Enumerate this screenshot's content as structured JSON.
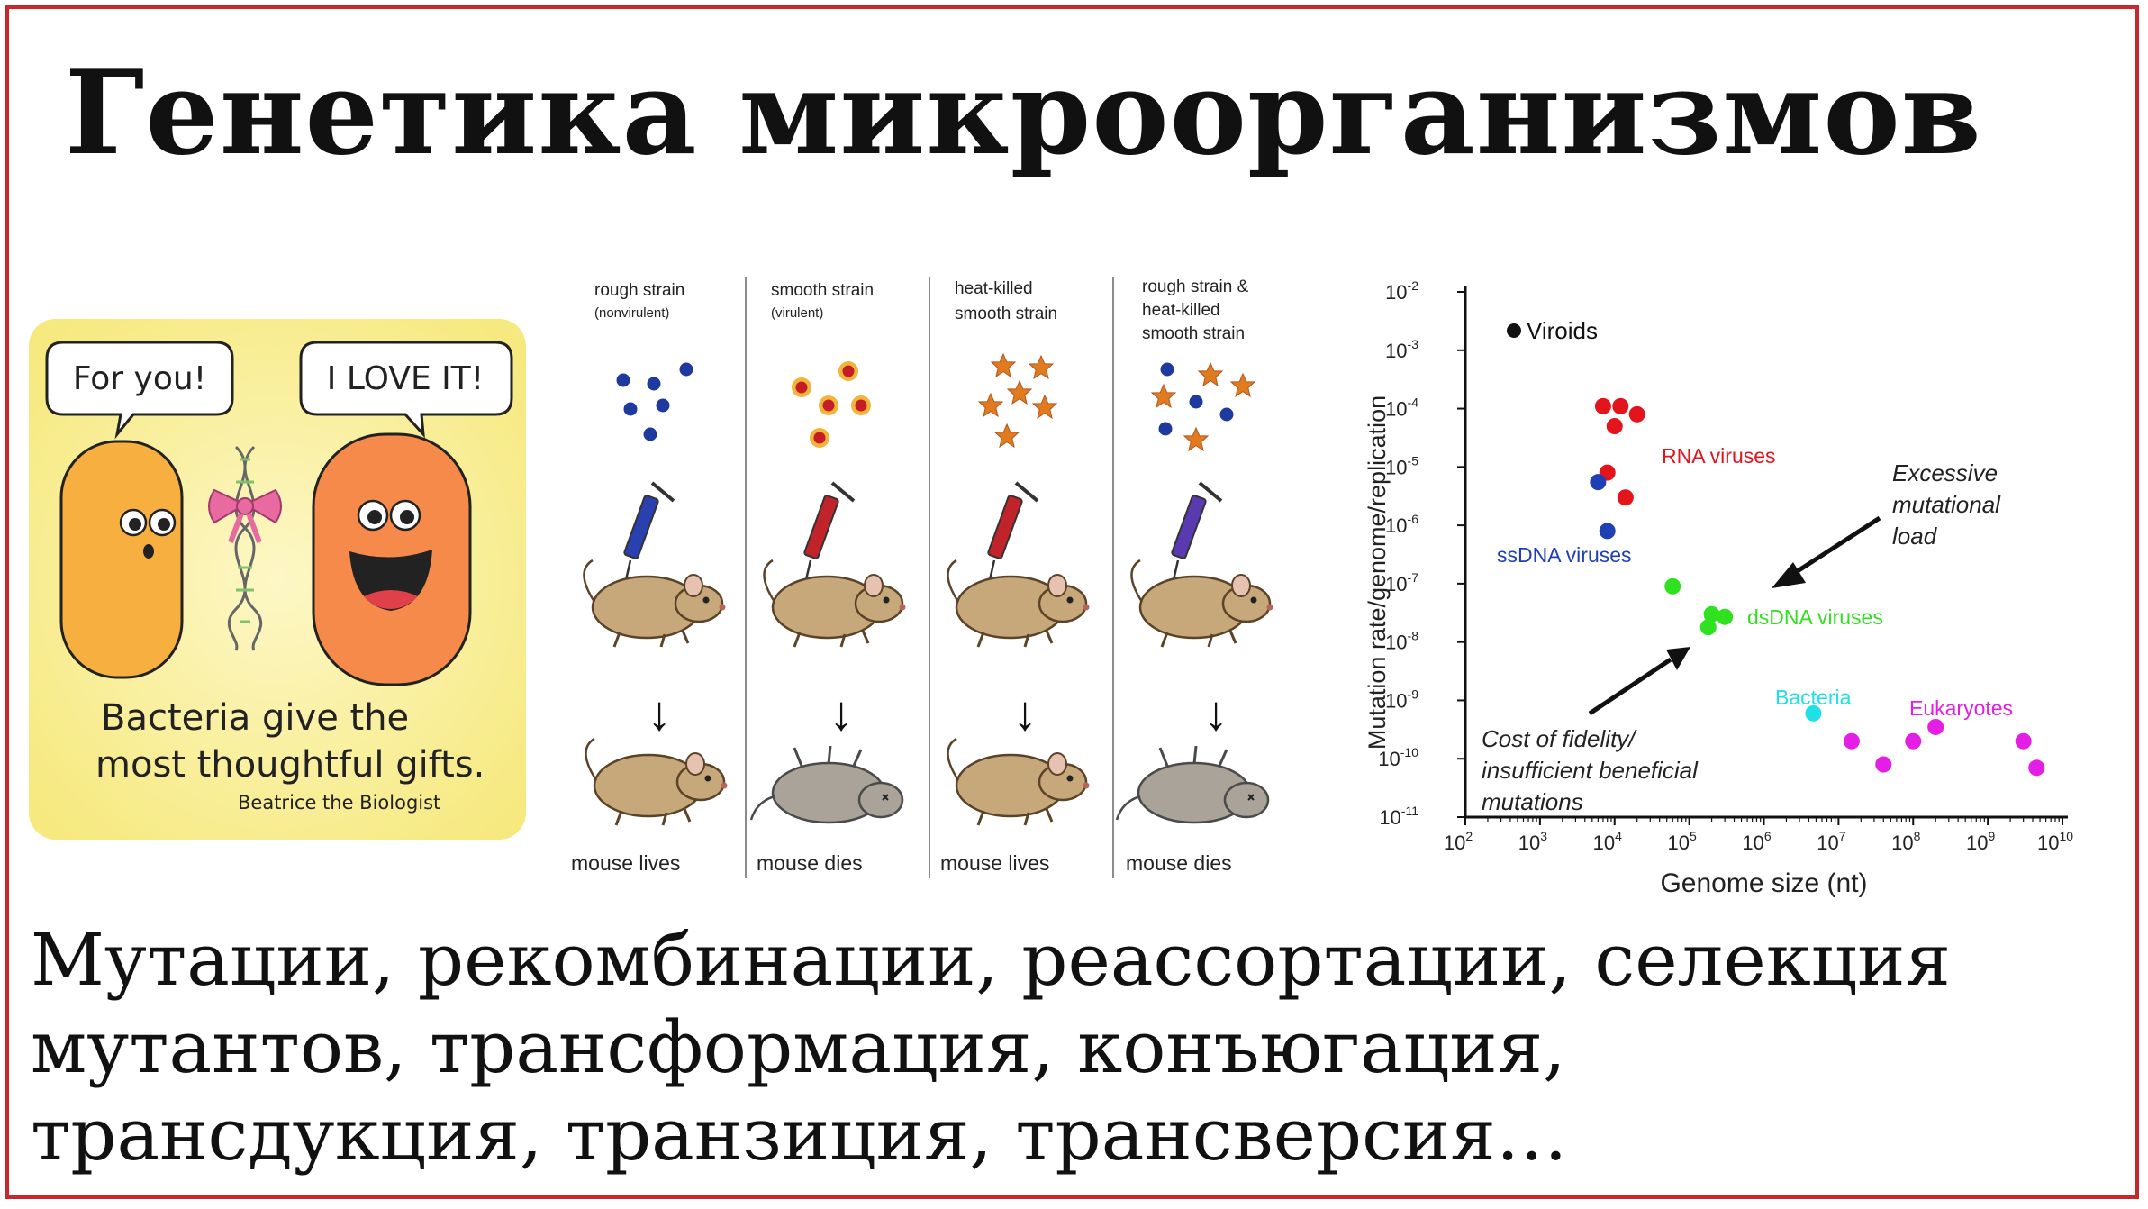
{
  "slide": {
    "title": "Генетика микроорганизмов",
    "bottom_lines": [
      "Мутации, рекомбинации, реассортации, селекция",
      "мутантов, трансформация, конъюгация,",
      "трансдукция, транзиция, трансверсия…"
    ],
    "frame_color": "#c8282c"
  },
  "comic": {
    "left_bubble": "For you!",
    "right_bubble": "I LOVE IT!",
    "caption_line1": "Bacteria give the",
    "caption_line2": "most thoughtful gifts.",
    "signature": "Beatrice the Biologist",
    "colors": {
      "background": "#fbf1a6",
      "left_bacterium": "#f7b03f",
      "right_bacterium": "#f58a4a",
      "bow": "#e86aa0"
    }
  },
  "griffith": {
    "panels": [
      {
        "label_line1": "rough strain",
        "label_line2": "(nonvirulent)",
        "label_line3": "",
        "outcome": "mouse lives",
        "particles": "blue-dots",
        "syringe_color": "#2a3fb0"
      },
      {
        "label_line1": "smooth strain",
        "label_line2": "(virulent)",
        "label_line3": "",
        "outcome": "mouse dies",
        "particles": "red-dots",
        "syringe_color": "#c0232a"
      },
      {
        "label_line1": "heat-killed",
        "label_line2": "smooth strain",
        "label_line3": "",
        "outcome": "mouse lives",
        "particles": "stars",
        "syringe_color": "#c0232a"
      },
      {
        "label_line1": "rough strain &",
        "label_line2": "heat-killed",
        "label_line3": "smooth strain",
        "outcome": "mouse dies",
        "particles": "mixed",
        "syringe_color": "#5a3ab0"
      }
    ],
    "arrow_glyph": "↓"
  },
  "chart_data": {
    "type": "scatter",
    "xlabel": "Genome size (nt)",
    "ylabel": "Mutation rate/genome/replication",
    "x_scale": "log",
    "y_scale": "log",
    "x_ticks": [
      {
        "base": "10",
        "exp": "2"
      },
      {
        "base": "10",
        "exp": "3"
      },
      {
        "base": "10",
        "exp": "4"
      },
      {
        "base": "10",
        "exp": "5"
      },
      {
        "base": "10",
        "exp": "6"
      },
      {
        "base": "10",
        "exp": "7"
      },
      {
        "base": "10",
        "exp": "8"
      },
      {
        "base": "10",
        "exp": "9"
      },
      {
        "base": "10",
        "exp": "10"
      }
    ],
    "y_ticks": [
      {
        "base": "10",
        "exp": "-2"
      },
      {
        "base": "10",
        "exp": "-3"
      },
      {
        "base": "10",
        "exp": "-4"
      },
      {
        "base": "10",
        "exp": "-5"
      },
      {
        "base": "10",
        "exp": "-6"
      },
      {
        "base": "10",
        "exp": "-7"
      },
      {
        "base": "10",
        "exp": "-8"
      },
      {
        "base": "10",
        "exp": "-9"
      },
      {
        "base": "10",
        "exp": "-10"
      },
      {
        "base": "10",
        "exp": "-11"
      }
    ],
    "xlim": [
      100,
      10000000000
    ],
    "ylim": [
      1e-11,
      0.01
    ],
    "legend": "Viroids",
    "series": [
      {
        "name": "RNA viruses",
        "color": "#e3141b",
        "points": [
          [
            7000,
            0.00011
          ],
          [
            12000,
            0.00011
          ],
          [
            20000,
            8e-05
          ],
          [
            10000,
            5e-05
          ],
          [
            8000,
            8e-06
          ],
          [
            14000,
            3e-06
          ]
        ]
      },
      {
        "name": "ssDNA viruses",
        "color": "#1f3fb4",
        "points": [
          [
            6000,
            5.5e-06
          ],
          [
            8000,
            8e-07
          ]
        ]
      },
      {
        "name": "dsDNA viruses",
        "color": "#2fe11e",
        "points": [
          [
            60000,
            9e-08
          ],
          [
            200000,
            3e-08
          ],
          [
            300000,
            2.7e-08
          ],
          [
            180000,
            1.8e-08
          ]
        ]
      },
      {
        "name": "Bacteria",
        "color": "#1ee0e6",
        "points": [
          [
            4600000,
            6e-10
          ]
        ]
      },
      {
        "name": "Eukaryotes",
        "color": "#e51ee6",
        "points": [
          [
            15000000,
            2e-10
          ],
          [
            40000000,
            8e-11
          ],
          [
            100000000,
            2e-10
          ],
          [
            200000000,
            3.5e-10
          ],
          [
            3000000000,
            2e-10
          ],
          [
            4500000000,
            7e-11
          ]
        ]
      }
    ],
    "annotations": {
      "excessive": [
        "Excessive",
        "mutational",
        "load"
      ],
      "cost": [
        "Cost of fidelity/",
        "insufficient beneficial",
        "mutations"
      ]
    }
  }
}
